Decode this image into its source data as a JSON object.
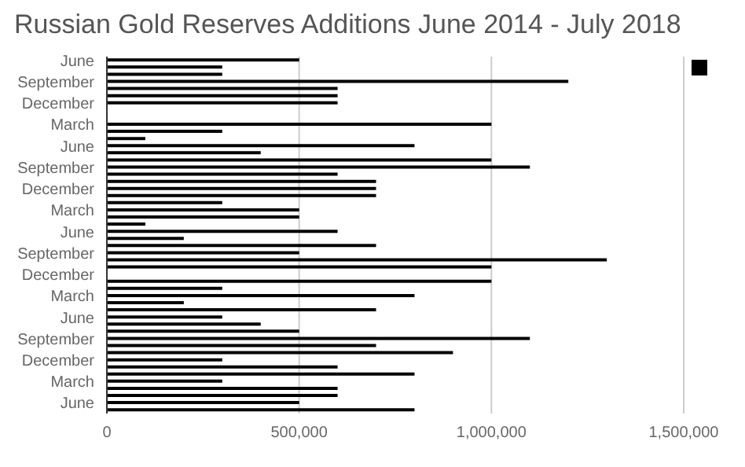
{
  "chart_data": {
    "type": "bar",
    "orientation": "horizontal",
    "title": "Russian Gold Reserves Additions June 2014 - July 2018",
    "categories": [
      "June",
      null,
      null,
      "September",
      null,
      null,
      "December",
      null,
      null,
      "March",
      null,
      null,
      "June",
      null,
      null,
      "September",
      null,
      null,
      "December",
      null,
      null,
      "March",
      null,
      null,
      "June",
      null,
      null,
      "September",
      null,
      null,
      "December",
      null,
      null,
      "March",
      null,
      null,
      "June",
      null,
      null,
      "September",
      null,
      null,
      "December",
      null,
      null,
      "March",
      null,
      null,
      "June",
      null
    ],
    "series": [
      {
        "color": "#000000",
        "values": [
          500000,
          300000,
          300000,
          1200000,
          600000,
          600000,
          600000,
          0,
          0,
          1000000,
          300000,
          100000,
          800000,
          400000,
          1000000,
          1100000,
          600000,
          700000,
          700000,
          700000,
          300000,
          500000,
          500000,
          100000,
          600000,
          200000,
          700000,
          500000,
          1300000,
          1000000,
          0,
          1000000,
          300000,
          800000,
          200000,
          700000,
          300000,
          400000,
          500000,
          1100000,
          700000,
          900000,
          300000,
          600000,
          800000,
          300000,
          600000,
          600000,
          500000,
          800000
        ]
      }
    ],
    "xlim": [
      0,
      1500000
    ],
    "xticks": [
      0,
      {
        "value": 500000,
        "label": "500,000"
      },
      {
        "value": 1000000,
        "label": "1,000,000"
      },
      {
        "value": 1500000,
        "label": "1,500,000"
      }
    ],
    "grid": "x"
  }
}
